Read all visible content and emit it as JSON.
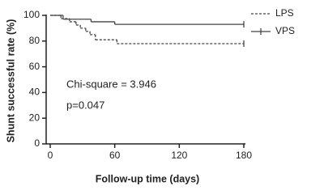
{
  "chart_data": {
    "type": "step",
    "x_label": "Follow-up time (days)",
    "y_label": "Shunt successful rate (%)",
    "annotations": [
      "Chi-square = 3.946",
      "p=0.047"
    ],
    "xlim": [
      0,
      180
    ],
    "xticks": [
      0,
      60,
      120,
      180
    ],
    "ylim": [
      0,
      100
    ],
    "yticks": [
      0,
      20,
      40,
      60,
      80,
      100
    ],
    "legend": "upper right",
    "series": [
      {
        "name": "LPS",
        "color": "#444444",
        "dash": true,
        "x": [
          0,
          10,
          18,
          24,
          28,
          33,
          37,
          42,
          62,
          180
        ],
        "values": [
          100,
          97.5,
          95,
          92.5,
          90,
          87.5,
          85,
          81,
          78,
          78
        ]
      },
      {
        "name": "VPS",
        "color": "#444444",
        "dash": false,
        "x": [
          0,
          12,
          38,
          60,
          180
        ],
        "values": [
          100,
          97,
          95,
          93,
          93
        ]
      }
    ]
  }
}
